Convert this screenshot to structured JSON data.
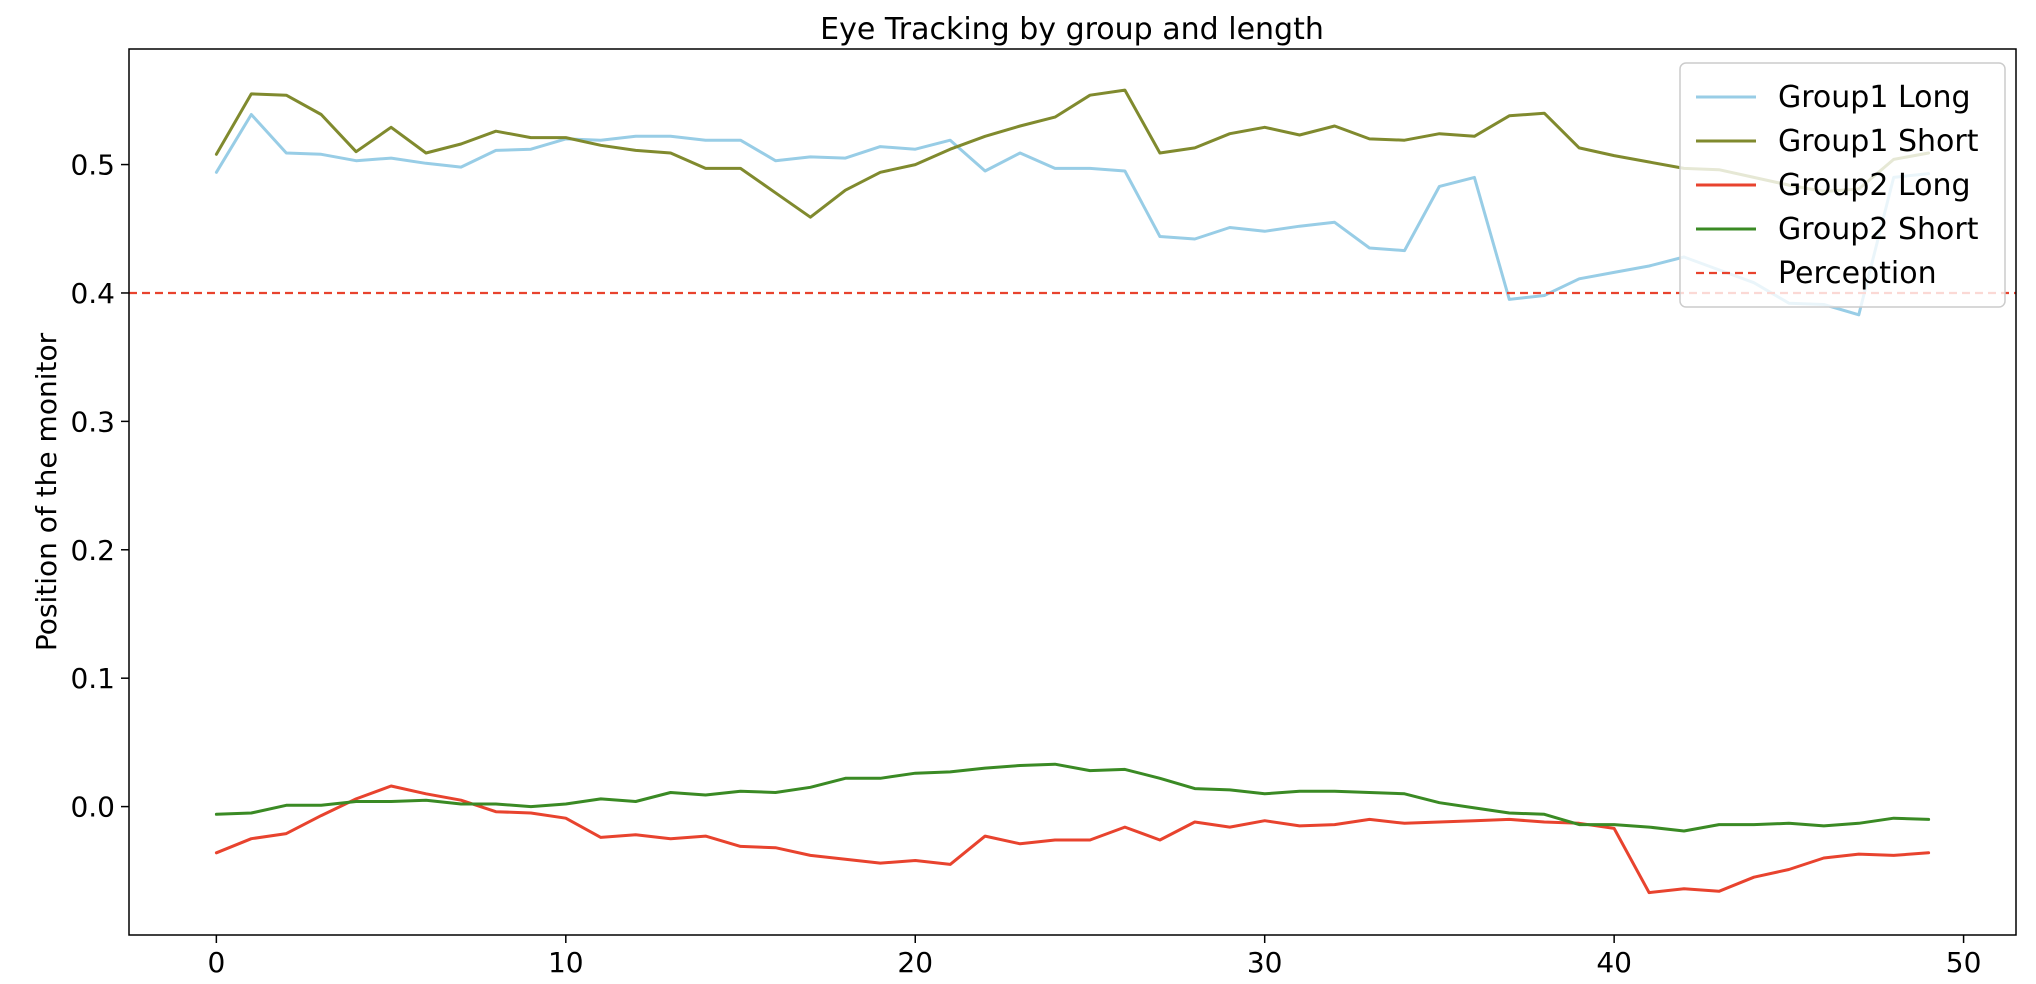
{
  "chart_data": {
    "type": "line",
    "title": "Eye Tracking by group and length",
    "xlabel": "",
    "ylabel": "Position of the monitor",
    "xlim": [
      -2.5,
      51.5
    ],
    "ylim": [
      -0.1,
      0.59
    ],
    "xticks": [
      0,
      10,
      20,
      30,
      40,
      50
    ],
    "yticks": [
      0.0,
      0.1,
      0.2,
      0.3,
      0.4,
      0.5
    ],
    "ytick_labels": [
      "0.0",
      "0.1",
      "0.2",
      "0.3",
      "0.4",
      "0.5"
    ],
    "grid": false,
    "legend_position": "top-right",
    "x": [
      0,
      1,
      2,
      3,
      4,
      5,
      6,
      7,
      8,
      9,
      10,
      11,
      12,
      13,
      14,
      15,
      16,
      17,
      18,
      19,
      20,
      21,
      22,
      23,
      24,
      25,
      26,
      27,
      28,
      29,
      30,
      31,
      32,
      33,
      34,
      35,
      36,
      37,
      38,
      39,
      40,
      41,
      42,
      43,
      44,
      45,
      46,
      47,
      48,
      49
    ],
    "series": [
      {
        "name": "Group1 Long",
        "color": "#98cde6",
        "dash": "solid",
        "values": [
          0.494,
          0.539,
          0.509,
          0.508,
          0.503,
          0.505,
          0.501,
          0.498,
          0.511,
          0.512,
          0.52,
          0.519,
          0.522,
          0.522,
          0.519,
          0.519,
          0.503,
          0.506,
          0.505,
          0.514,
          0.512,
          0.519,
          0.495,
          0.509,
          0.497,
          0.497,
          0.495,
          0.444,
          0.442,
          0.451,
          0.448,
          0.452,
          0.455,
          0.435,
          0.433,
          0.483,
          0.49,
          0.395,
          0.398,
          0.411,
          0.416,
          0.421,
          0.428,
          0.418,
          0.408,
          0.392,
          0.391,
          0.383,
          0.49,
          0.493
        ]
      },
      {
        "name": "Group1 Short",
        "color": "#808a2e",
        "dash": "solid",
        "values": [
          0.508,
          0.555,
          0.554,
          0.539,
          0.51,
          0.529,
          0.509,
          0.516,
          0.526,
          0.521,
          0.521,
          0.515,
          0.511,
          0.509,
          0.497,
          0.497,
          0.478,
          0.459,
          0.48,
          0.494,
          0.5,
          0.512,
          0.522,
          0.53,
          0.537,
          0.554,
          0.558,
          0.509,
          0.513,
          0.524,
          0.529,
          0.523,
          0.53,
          0.52,
          0.519,
          0.524,
          0.522,
          0.538,
          0.54,
          0.513,
          0.507,
          0.502,
          0.497,
          0.496,
          0.49,
          0.484,
          0.479,
          0.481,
          0.504,
          0.509
        ]
      },
      {
        "name": "Group2 Long",
        "color": "#e8432e",
        "dash": "solid",
        "values": [
          -0.036,
          -0.025,
          -0.021,
          -0.007,
          0.006,
          0.016,
          0.01,
          0.005,
          -0.004,
          -0.005,
          -0.009,
          -0.024,
          -0.022,
          -0.025,
          -0.023,
          -0.031,
          -0.032,
          -0.038,
          -0.041,
          -0.044,
          -0.042,
          -0.045,
          -0.023,
          -0.029,
          -0.026,
          -0.026,
          -0.016,
          -0.026,
          -0.012,
          -0.016,
          -0.011,
          -0.015,
          -0.014,
          -0.01,
          -0.013,
          -0.012,
          -0.011,
          -0.01,
          -0.012,
          -0.013,
          -0.017,
          -0.067,
          -0.064,
          -0.066,
          -0.055,
          -0.049,
          -0.04,
          -0.037,
          -0.038,
          -0.036
        ]
      },
      {
        "name": "Group2 Short",
        "color": "#3a8a24",
        "dash": "solid",
        "values": [
          -0.006,
          -0.005,
          0.001,
          0.001,
          0.004,
          0.004,
          0.005,
          0.002,
          0.002,
          0.0,
          0.002,
          0.006,
          0.004,
          0.011,
          0.009,
          0.012,
          0.011,
          0.015,
          0.022,
          0.022,
          0.026,
          0.027,
          0.03,
          0.032,
          0.033,
          0.028,
          0.029,
          0.022,
          0.014,
          0.013,
          0.01,
          0.012,
          0.012,
          0.011,
          0.01,
          0.003,
          -0.001,
          -0.005,
          -0.006,
          -0.014,
          -0.014,
          -0.016,
          -0.019,
          -0.014,
          -0.014,
          -0.013,
          -0.015,
          -0.013,
          -0.009,
          -0.01
        ]
      }
    ],
    "reference_lines": [
      {
        "name": "Perception",
        "y": 0.4,
        "color": "#e8432e",
        "dash": "dashed"
      }
    ]
  }
}
